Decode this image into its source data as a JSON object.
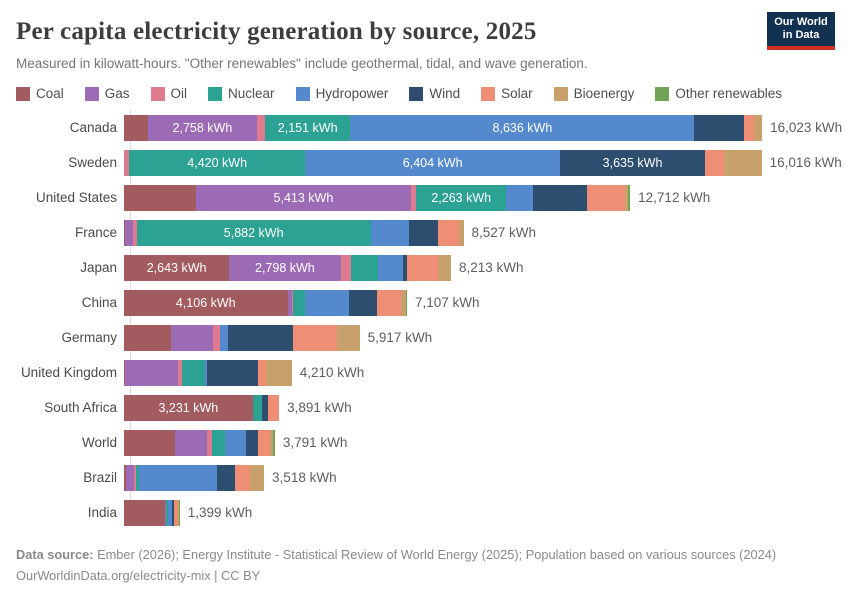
{
  "header": {
    "title": "Per capita electricity generation by source, 2025",
    "subtitle": "Measured in kilowatt-hours. \"Other renewables\" include geothermal, tidal, and wave generation.",
    "logo": {
      "line1": "Our World",
      "line2": "in Data"
    }
  },
  "colors": {
    "navy_logo": "#12304f",
    "red_logo": "#d42f27",
    "coal": "#a25b5e",
    "gas": "#9c6bb5",
    "oil": "#dd7a8e",
    "nuclear": "#2ca294",
    "hydropower": "#5589cd",
    "wind": "#2e4e6f",
    "solar": "#ee8e74",
    "bioenergy": "#c7a06c",
    "other_renewables": "#71a356"
  },
  "legend": [
    {
      "key": "coal",
      "label": "Coal"
    },
    {
      "key": "gas",
      "label": "Gas"
    },
    {
      "key": "oil",
      "label": "Oil"
    },
    {
      "key": "nuclear",
      "label": "Nuclear"
    },
    {
      "key": "hydropower",
      "label": "Hydropower"
    },
    {
      "key": "wind",
      "label": "Wind"
    },
    {
      "key": "solar",
      "label": "Solar"
    },
    {
      "key": "bioenergy",
      "label": "Bioenergy"
    },
    {
      "key": "other_renewables",
      "label": "Other renewables"
    }
  ],
  "chart_data": {
    "type": "bar",
    "stacked": true,
    "orientation": "horizontal",
    "unit": "kWh",
    "title": "Per capita electricity generation by source, 2025",
    "xlim": [
      0,
      16023
    ],
    "grid": false,
    "legend_position": "top",
    "source_order": [
      "coal",
      "gas",
      "oil",
      "nuclear",
      "hydropower",
      "wind",
      "solar",
      "bioenergy",
      "other_renewables"
    ],
    "rows": [
      {
        "country": "Canada",
        "total": 16023,
        "total_label": "16,023 kWh",
        "values": {
          "coal": 590,
          "gas": 2758,
          "oil": 190,
          "nuclear": 2151,
          "hydropower": 8636,
          "wind": 1250,
          "solar": 235,
          "bioenergy": 213,
          "other_renewables": 0
        },
        "segment_labels": {
          "gas": "2,758 kWh",
          "nuclear": "2,151 kWh",
          "hydropower": "8,636 kWh"
        }
      },
      {
        "country": "Sweden",
        "total": 16016,
        "total_label": "16,016 kWh",
        "values": {
          "coal": 0,
          "gas": 0,
          "oil": 130,
          "nuclear": 4420,
          "hydropower": 6404,
          "wind": 3635,
          "solar": 480,
          "bioenergy": 947,
          "other_renewables": 0
        },
        "segment_labels": {
          "nuclear": "4,420 kWh",
          "hydropower": "6,404 kWh",
          "wind": "3,635 kWh"
        }
      },
      {
        "country": "United States",
        "total": 12712,
        "total_label": "12,712 kWh",
        "values": {
          "coal": 1800,
          "gas": 5413,
          "oil": 125,
          "nuclear": 2263,
          "hydropower": 660,
          "wind": 1360,
          "solar": 965,
          "bioenergy": 76,
          "other_renewables": 50
        },
        "segment_labels": {
          "gas": "5,413 kWh",
          "nuclear": "2,263 kWh"
        }
      },
      {
        "country": "France",
        "total": 8527,
        "total_label": "8,527 kWh",
        "values": {
          "coal": 30,
          "gas": 205,
          "oil": 80,
          "nuclear": 5882,
          "hydropower": 960,
          "wind": 730,
          "solar": 520,
          "bioenergy": 120,
          "other_renewables": 0
        },
        "segment_labels": {
          "nuclear": "5,882 kWh"
        }
      },
      {
        "country": "Japan",
        "total": 8213,
        "total_label": "8,213 kWh",
        "values": {
          "coal": 2643,
          "gas": 2798,
          "oil": 252,
          "nuclear": 680,
          "hydropower": 630,
          "wind": 100,
          "solar": 780,
          "bioenergy": 330,
          "other_renewables": 0
        },
        "segment_labels": {
          "coal": "2,643 kWh",
          "gas": "2,798 kWh"
        }
      },
      {
        "country": "China",
        "total": 7107,
        "total_label": "7,107 kWh",
        "values": {
          "coal": 4106,
          "gas": 120,
          "oil": 20,
          "nuclear": 300,
          "hydropower": 1100,
          "wind": 710,
          "solar": 590,
          "bioenergy": 136,
          "other_renewables": 25
        },
        "segment_labels": {
          "coal": "4,106 kWh"
        }
      },
      {
        "country": "Germany",
        "total": 5917,
        "total_label": "5,917 kWh",
        "values": {
          "coal": 1190,
          "gas": 1040,
          "oil": 170,
          "nuclear": 0,
          "hydropower": 200,
          "wind": 1650,
          "solar": 1090,
          "bioenergy": 577,
          "other_renewables": 0
        },
        "segment_labels": {}
      },
      {
        "country": "United Kingdom",
        "total": 4210,
        "total_label": "4,210 kWh",
        "values": {
          "coal": 30,
          "gas": 1330,
          "oil": 100,
          "nuclear": 570,
          "hydropower": 60,
          "wind": 1270,
          "solar": 210,
          "bioenergy": 640,
          "other_renewables": 0
        },
        "segment_labels": {}
      },
      {
        "country": "South Africa",
        "total": 3891,
        "total_label": "3,891 kWh",
        "values": {
          "coal": 3231,
          "gas": 0,
          "oil": 15,
          "nuclear": 210,
          "hydropower": 0,
          "wind": 170,
          "solar": 265,
          "bioenergy": 0,
          "other_renewables": 0
        },
        "segment_labels": {
          "coal": "3,231 kWh"
        }
      },
      {
        "country": "World",
        "total": 3791,
        "total_label": "3,791 kWh",
        "values": {
          "coal": 1280,
          "gas": 800,
          "oil": 120,
          "nuclear": 325,
          "hydropower": 550,
          "wind": 300,
          "solar": 300,
          "bioenergy": 81,
          "other_renewables": 35
        },
        "segment_labels": {}
      },
      {
        "country": "Brazil",
        "total": 3518,
        "total_label": "3,518 kWh",
        "values": {
          "coal": 60,
          "gas": 180,
          "oil": 70,
          "nuclear": 70,
          "hydropower": 1950,
          "wind": 470,
          "solar": 360,
          "bioenergy": 358,
          "other_renewables": 0
        },
        "segment_labels": {}
      },
      {
        "country": "India",
        "total": 1399,
        "total_label": "1,399 kWh",
        "values": {
          "coal": 1030,
          "gas": 25,
          "oil": 10,
          "nuclear": 40,
          "hydropower": 105,
          "wind": 55,
          "solar": 95,
          "bioenergy": 25,
          "other_renewables": 14
        },
        "segment_labels": {}
      }
    ]
  },
  "footer": {
    "line1_bold": "Data source:",
    "line1_rest": " Ember (2026); Energy Institute - Statistical Review of World Energy (2025); Population based on various sources (2024)",
    "line2_link": "OurWorldinData.org/electricity-mix",
    "line2_rest": " | CC BY"
  }
}
